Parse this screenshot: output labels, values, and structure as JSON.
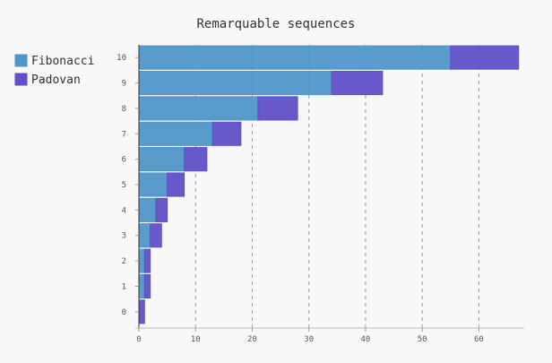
{
  "chart_data": {
    "type": "bar",
    "orientation": "horizontal",
    "stacked": true,
    "title": "Remarquable sequences",
    "categories": [
      "0",
      "1",
      "2",
      "3",
      "4",
      "5",
      "6",
      "7",
      "8",
      "9",
      "10"
    ],
    "series": [
      {
        "name": "Fibonacci",
        "color": "#5096c8",
        "values": [
          0,
          1,
          1,
          2,
          3,
          5,
          8,
          13,
          21,
          34,
          55
        ]
      },
      {
        "name": "Padovan",
        "color": "#6050c8",
        "values": [
          1,
          1,
          1,
          2,
          2,
          3,
          4,
          5,
          7,
          9,
          12
        ]
      }
    ],
    "x_ticks": [
      0,
      10,
      20,
      30,
      40,
      50,
      60
    ],
    "xlim": [
      0,
      68
    ],
    "grid": true,
    "legend": "top-left"
  }
}
